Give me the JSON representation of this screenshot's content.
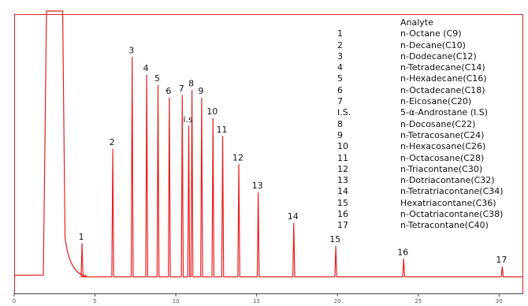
{
  "chart_data": {
    "type": "line",
    "title": "",
    "xlabel": "",
    "ylabel": "",
    "xlim": [
      0,
      31.5
    ],
    "ylim": [
      0,
      100
    ],
    "x_ticks": [
      0,
      5,
      10,
      15,
      20,
      25,
      30
    ],
    "x_tick_labels": [
      "0",
      "5",
      "10",
      "15",
      "20",
      "25",
      "30"
    ],
    "grid": false,
    "colors": {
      "trace": "#e8201f",
      "frame": "#d9262b",
      "axis": "#444444"
    },
    "solvent_front": {
      "x": [
        2.0,
        3.0
      ]
    },
    "peaks": [
      {
        "label": "1",
        "x": 4.2,
        "height": 13
      },
      {
        "label": "2",
        "x": 6.1,
        "height": 50
      },
      {
        "label": "3",
        "x": 7.3,
        "height": 86
      },
      {
        "label": "4",
        "x": 8.2,
        "height": 79
      },
      {
        "label": "5",
        "x": 8.9,
        "height": 75
      },
      {
        "label": "6",
        "x": 9.6,
        "height": 70
      },
      {
        "label": "7",
        "x": 10.4,
        "height": 71
      },
      {
        "label": "I.S.",
        "x": 10.8,
        "height": 59
      },
      {
        "label": "8",
        "x": 11.0,
        "height": 73
      },
      {
        "label": "9",
        "x": 11.6,
        "height": 70
      },
      {
        "label": "10",
        "x": 12.3,
        "height": 62
      },
      {
        "label": "11",
        "x": 12.9,
        "height": 55
      },
      {
        "label": "12",
        "x": 13.9,
        "height": 44
      },
      {
        "label": "13",
        "x": 15.1,
        "height": 33
      },
      {
        "label": "14",
        "x": 17.3,
        "height": 21
      },
      {
        "label": "15",
        "x": 19.9,
        "height": 12
      },
      {
        "label": "16",
        "x": 24.1,
        "height": 7
      },
      {
        "label": "17",
        "x": 30.2,
        "height": 4
      }
    ],
    "peak_labels": [
      "1",
      "2",
      "3",
      "4",
      "5",
      "6",
      "7",
      "i.s",
      "8",
      "9",
      "10",
      "11",
      "12",
      "13",
      "14",
      "15",
      "16",
      "17"
    ],
    "legend": {
      "header": "Analyte",
      "entries": [
        {
          "num": "1",
          "name": "n-Octane (C9)"
        },
        {
          "num": "2",
          "name": "n-Decane(C10)"
        },
        {
          "num": "3",
          "name": "n-Dodecane(C12)"
        },
        {
          "num": "4",
          "name": "n-Tetradecane(C14)"
        },
        {
          "num": "5",
          "name": "n-Hexadecane(C16)"
        },
        {
          "num": "6",
          "name": "n-Octadecane(C18)"
        },
        {
          "num": "7",
          "name": "n-Eicosane(C20)"
        },
        {
          "num": "I.S.",
          "name": "5-α-Androstane (I.S)"
        },
        {
          "num": "8",
          "name": "n-Docosane(C22)"
        },
        {
          "num": "9",
          "name": "n-Tetracosane(C24)"
        },
        {
          "num": "10",
          "name": "n-Hexacosane(C26)"
        },
        {
          "num": "11",
          "name": "n-Octacosane(C28)"
        },
        {
          "num": "12",
          "name": "n-Triacontane(C30)"
        },
        {
          "num": "13",
          "name": "n-Dotriacontane(C32)"
        },
        {
          "num": "14",
          "name": "n-Tetratriacontane(C34)"
        },
        {
          "num": "15",
          "name": "Hexatriacontane(C36)"
        },
        {
          "num": "16",
          "name": "n-Octatriacontane(C38)"
        },
        {
          "num": "17",
          "name": "n-Tetracontane(C40)"
        }
      ]
    }
  }
}
